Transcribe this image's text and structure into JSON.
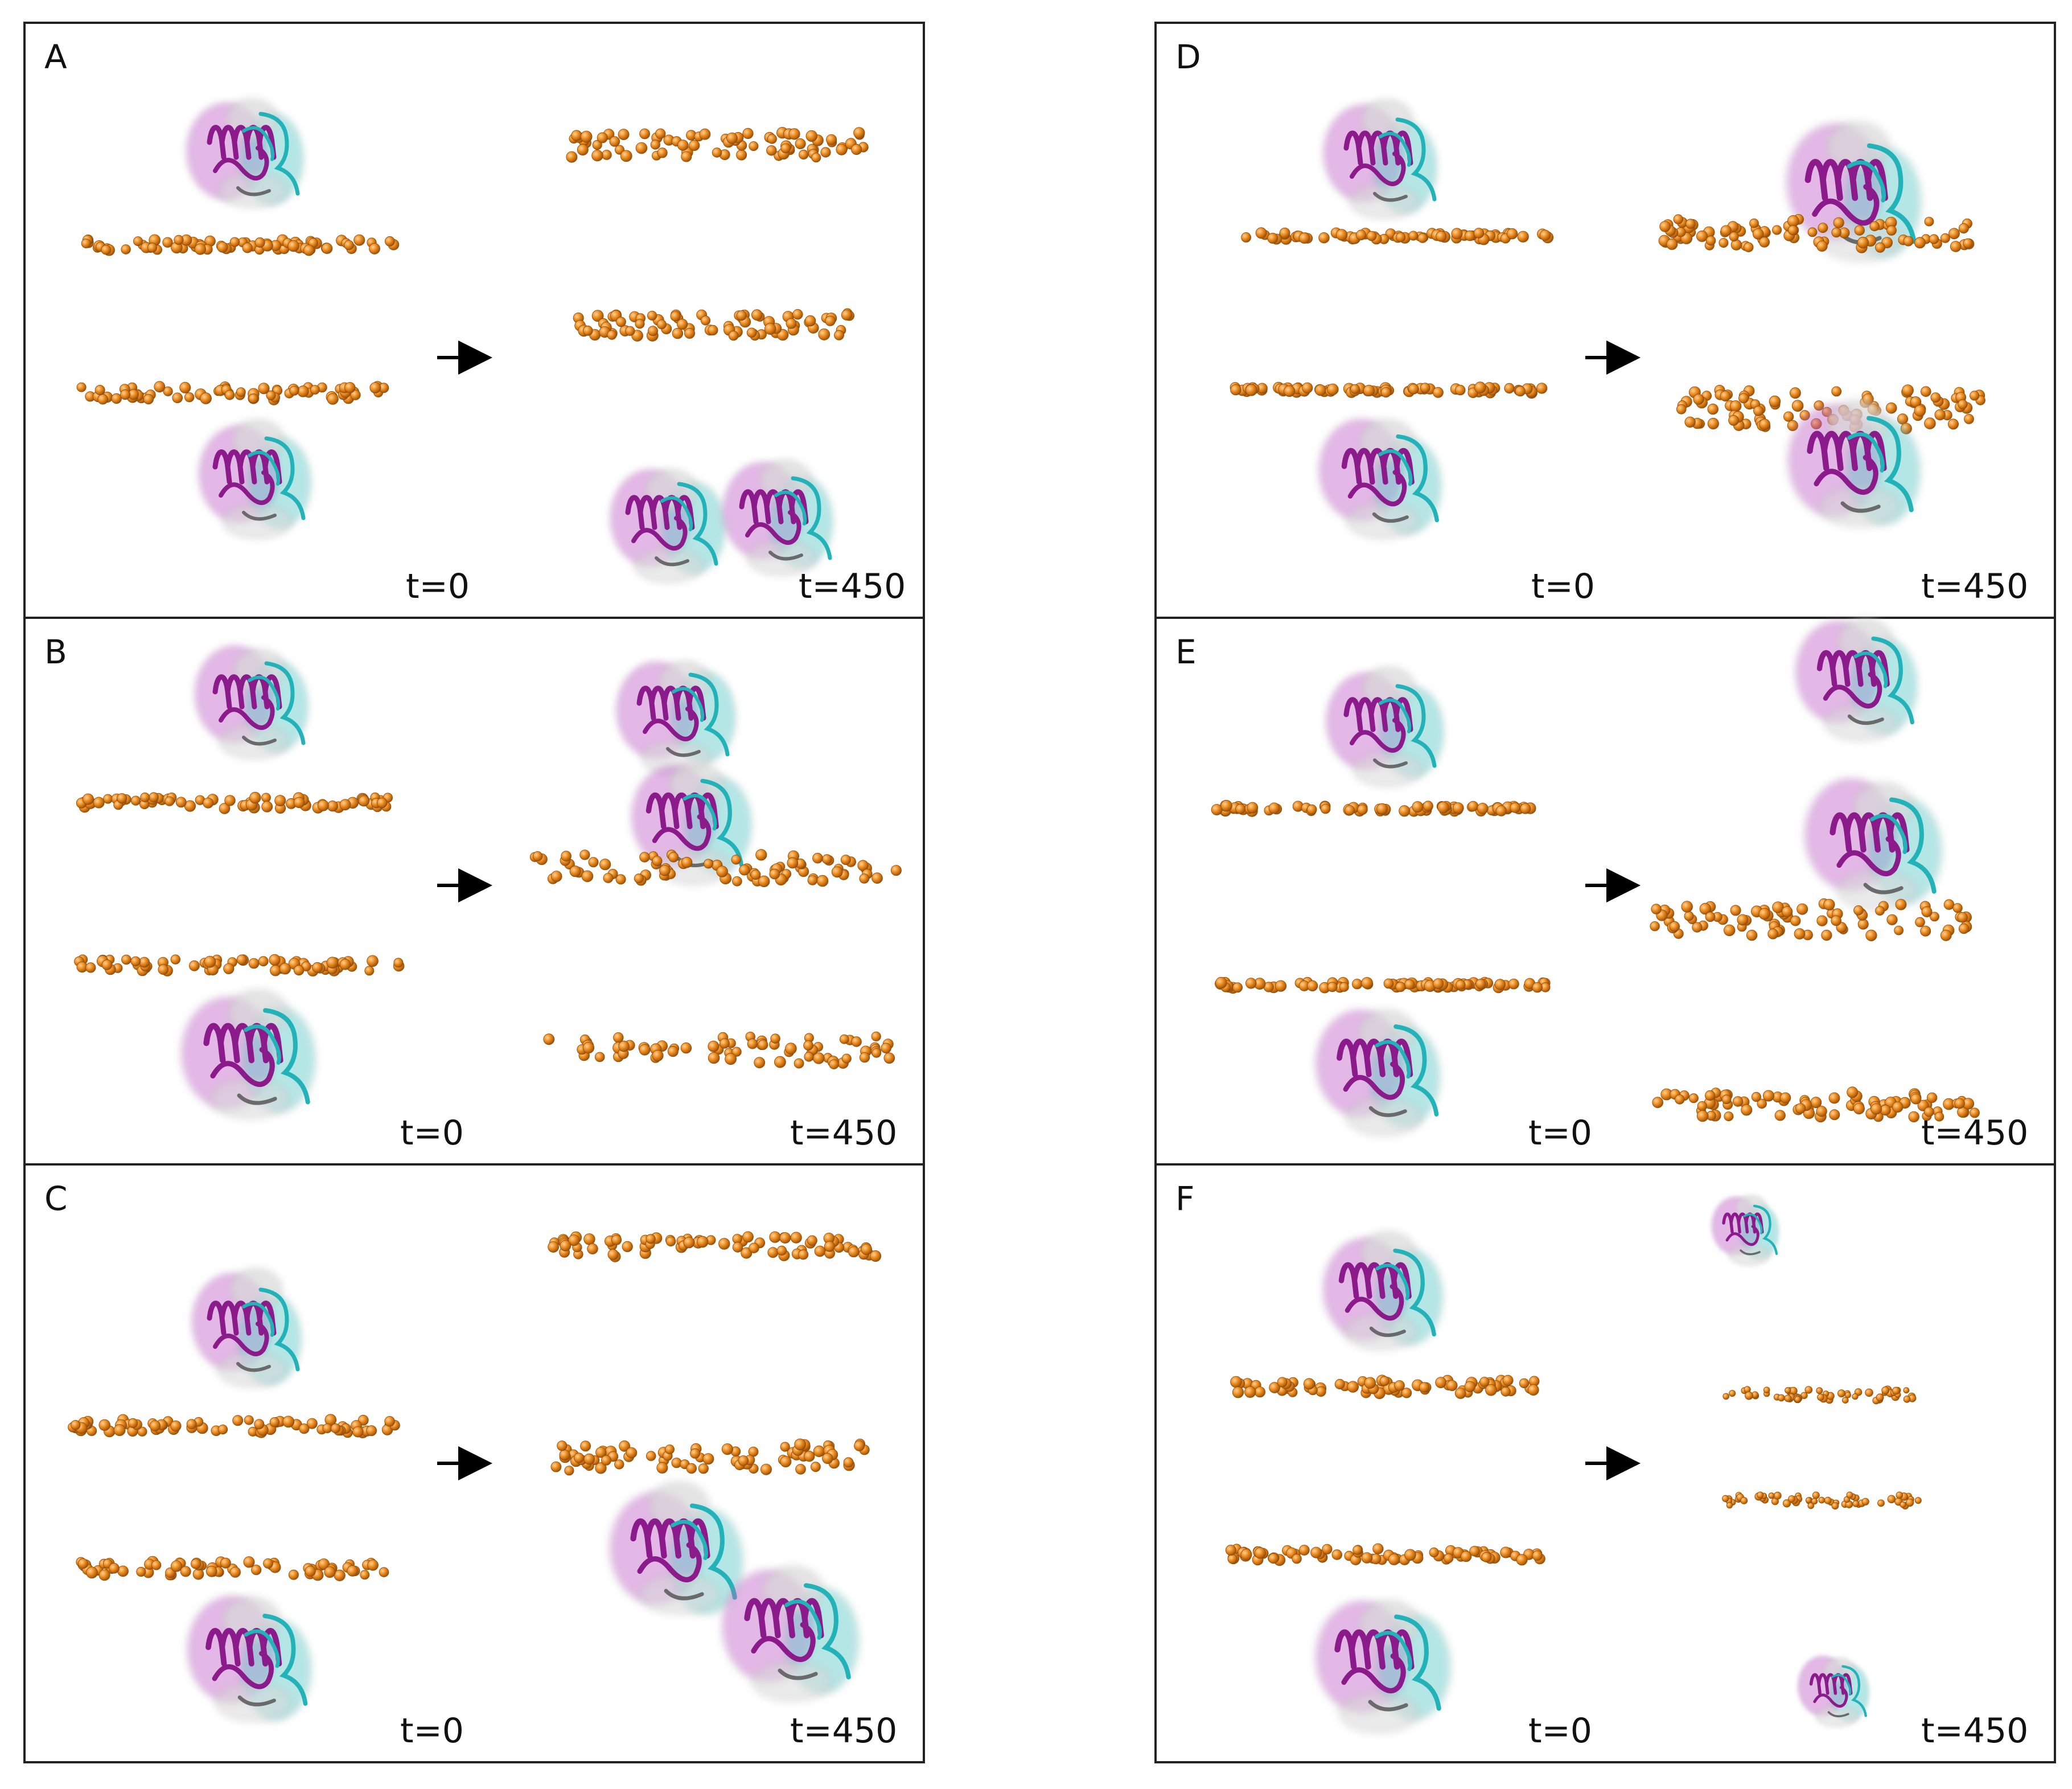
{
  "panels": [
    {
      "id": "A",
      "label": "A",
      "t_start": "t=0",
      "t_end": "t=450"
    },
    {
      "id": "B",
      "label": "B",
      "t_start": "t=0",
      "t_end": "t=450"
    },
    {
      "id": "C",
      "label": "C",
      "t_start": "t=0",
      "t_end": "t=450"
    },
    {
      "id": "D",
      "label": "D",
      "t_start": "t=0",
      "t_end": "t=450"
    },
    {
      "id": "E",
      "label": "E",
      "t_start": "t=0",
      "t_end": "t=450"
    },
    {
      "id": "F",
      "label": "F",
      "t_start": "t=0",
      "t_end": "t=450"
    }
  ],
  "colors": {
    "bead": "#e8871e",
    "bead_edge": "#8a4a08",
    "helix": "#8b1a8b",
    "coil": "#22b2b8",
    "surface_purple": "#c060c8",
    "surface_cyan": "#5cc8c8",
    "surface_white": "#d8d8d8",
    "frame": "#222222",
    "arrow": "#000000"
  },
  "icons": {
    "membrane": "bead-layer",
    "protein": "protein-ribbon-surface",
    "arrow": "right-arrow-icon"
  }
}
